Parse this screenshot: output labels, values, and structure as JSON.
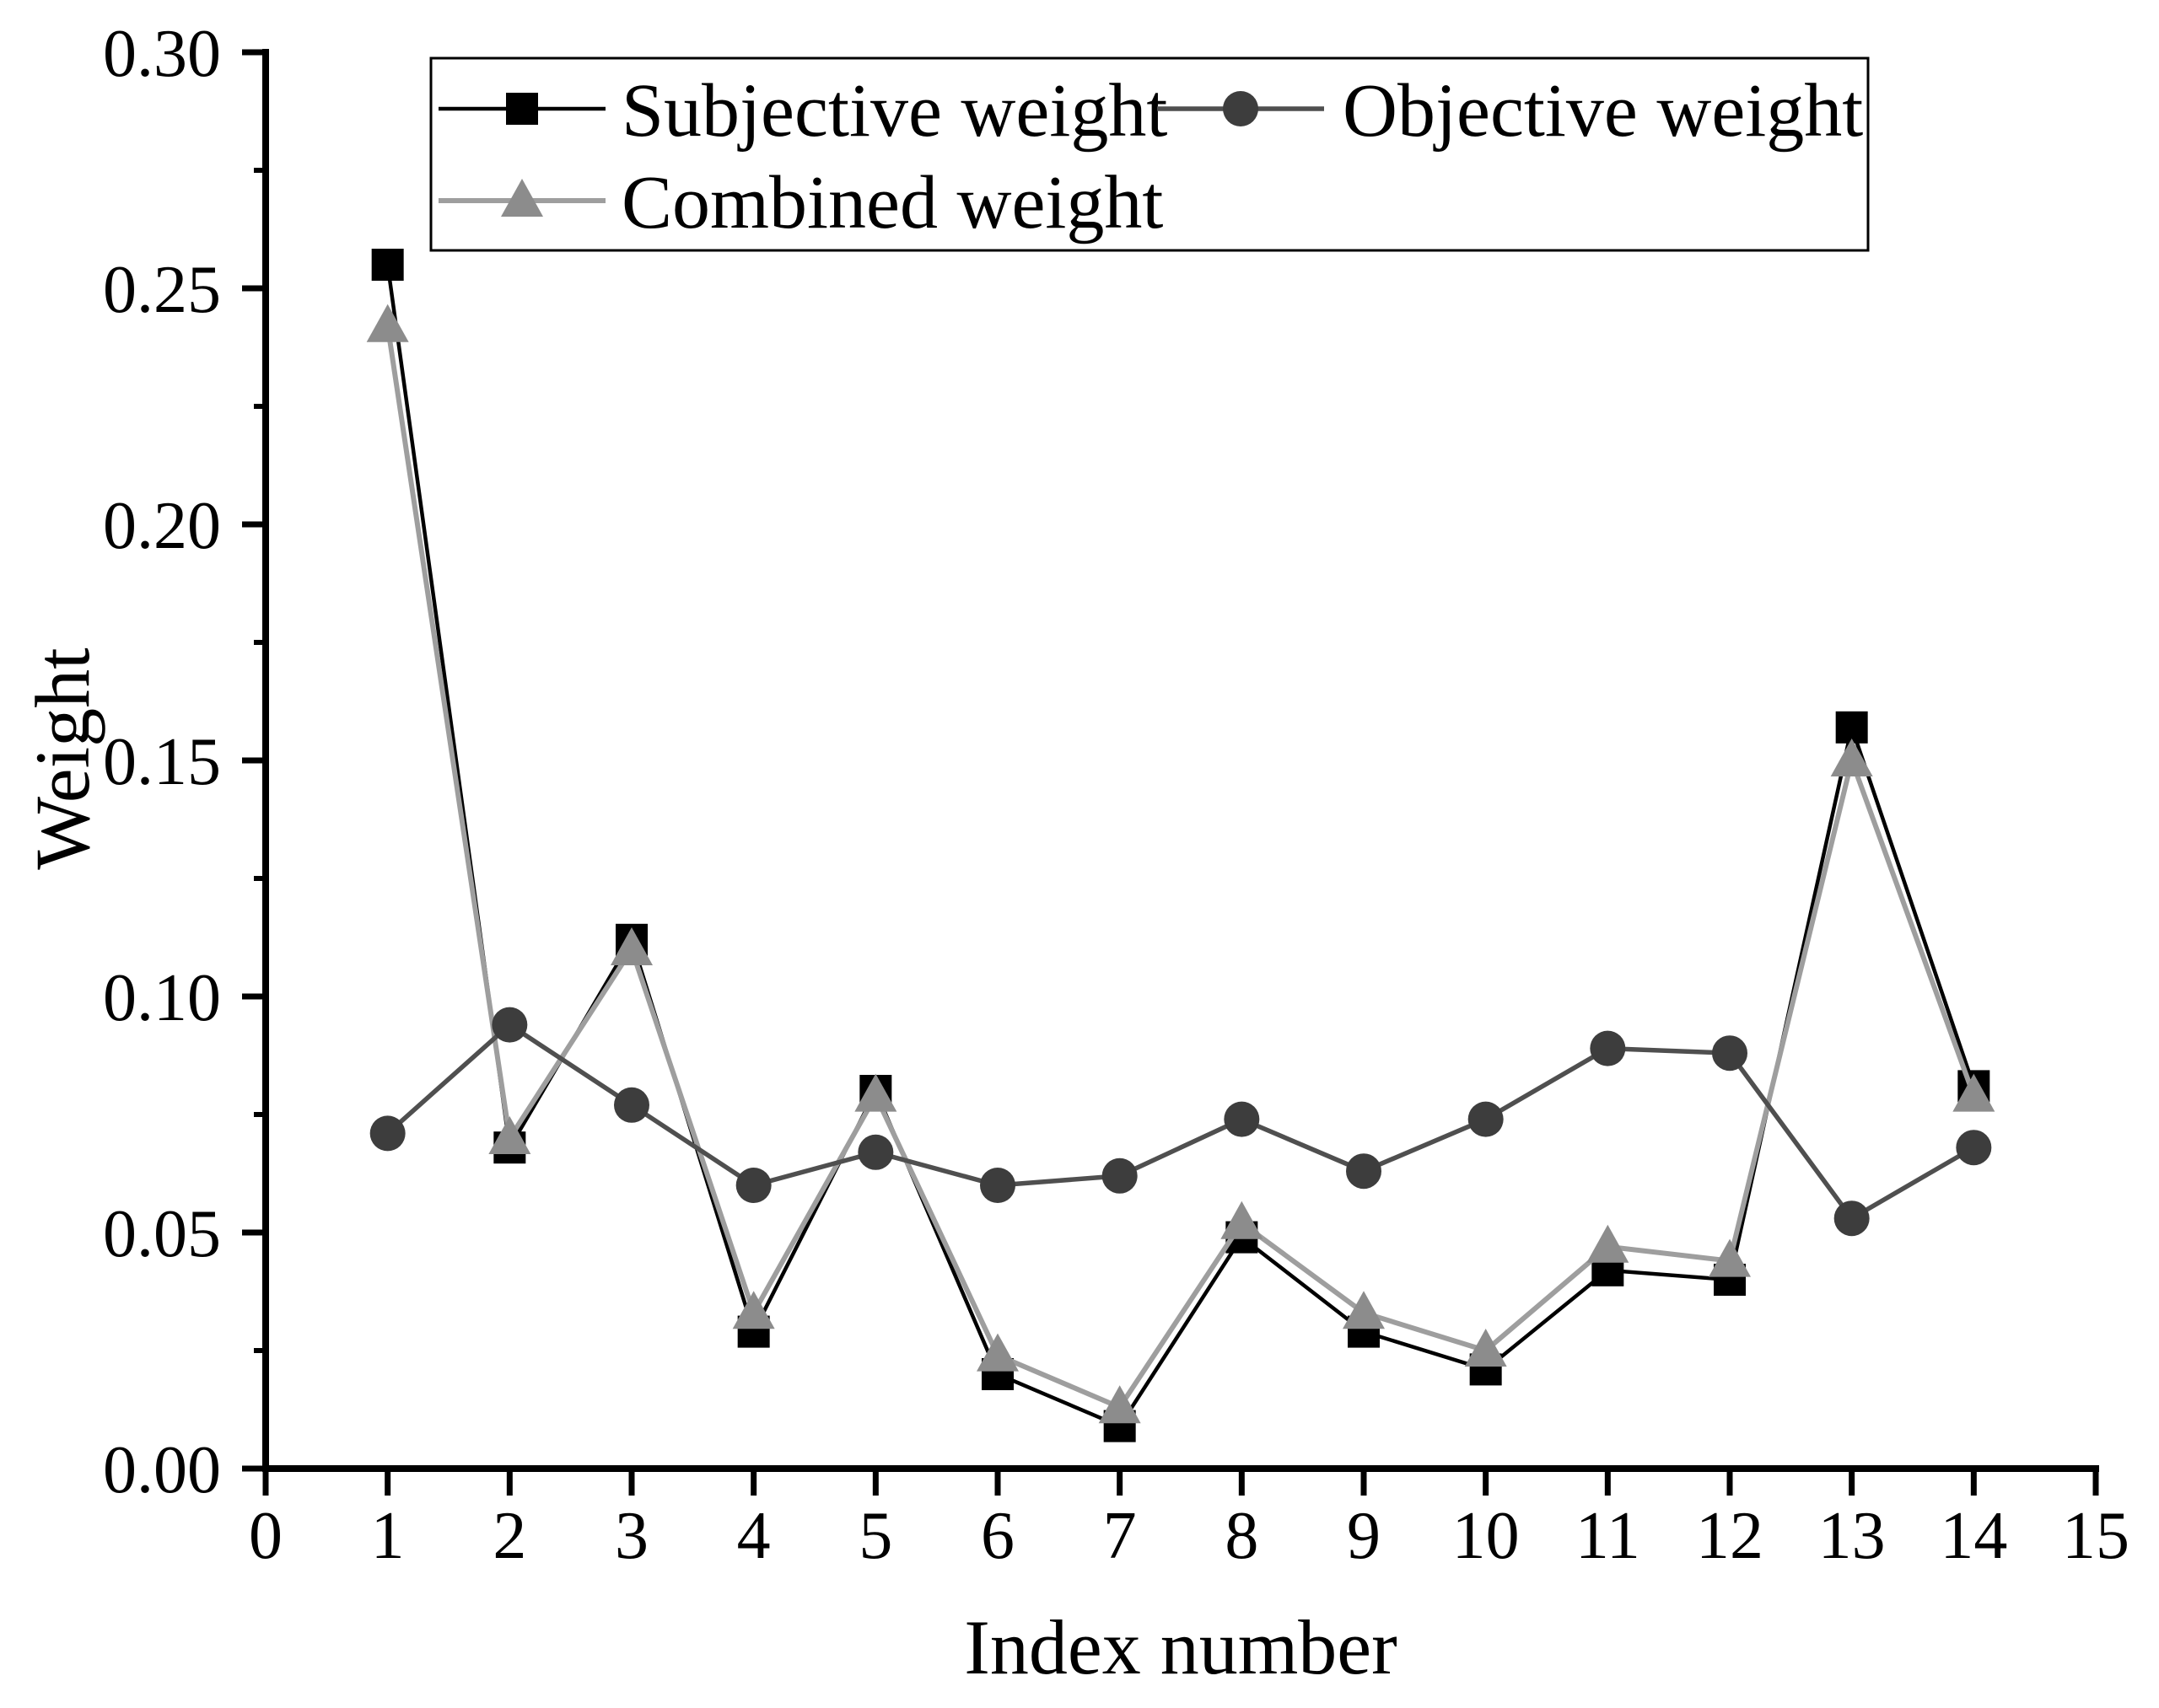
{
  "figure": {
    "background": "#ffffff",
    "axis_color": "#000000"
  },
  "chart_data": {
    "type": "line",
    "title": "",
    "xlabel": "Index number",
    "ylabel": "Weight",
    "xlim": [
      0,
      15
    ],
    "ylim": [
      0.0,
      0.3
    ],
    "grid": false,
    "legend_position": "top-left-inside",
    "x_tick_labels": [
      "0",
      "1",
      "2",
      "3",
      "4",
      "5",
      "6",
      "7",
      "8",
      "9",
      "10",
      "11",
      "12",
      "13",
      "14",
      "15"
    ],
    "y_tick_labels": [
      "0.00",
      "0.05",
      "0.10",
      "0.15",
      "0.20",
      "0.25",
      "0.30"
    ],
    "y_minor_tick_step": 0.025,
    "x": [
      1,
      2,
      3,
      4,
      5,
      6,
      7,
      8,
      9,
      10,
      11,
      12,
      13,
      14
    ],
    "series": [
      {
        "name": "Subjective weight",
        "marker": "square",
        "marker_color": "#000000",
        "line_color": "#000000",
        "values": [
          0.255,
          0.068,
          0.112,
          0.029,
          0.08,
          0.02,
          0.009,
          0.049,
          0.029,
          0.021,
          0.042,
          0.04,
          0.157,
          0.081
        ]
      },
      {
        "name": "Combined weight",
        "marker": "triangle",
        "marker_color": "#8c8c8c",
        "line_color": "#9e9e9e",
        "values": [
          0.242,
          0.07,
          0.11,
          0.033,
          0.079,
          0.024,
          0.013,
          0.052,
          0.033,
          0.025,
          0.047,
          0.044,
          0.15,
          0.079
        ]
      },
      {
        "name": "Objective weight",
        "marker": "circle",
        "marker_color": "#3d3d3d",
        "line_color": "#4f4f4f",
        "values": [
          0.071,
          0.094,
          0.077,
          0.06,
          0.067,
          0.06,
          0.062,
          0.074,
          0.063,
          0.074,
          0.089,
          0.088,
          0.053,
          0.068
        ]
      }
    ],
    "legend_order": [
      "Subjective weight",
      "Objective weight",
      "Combined weight"
    ]
  }
}
